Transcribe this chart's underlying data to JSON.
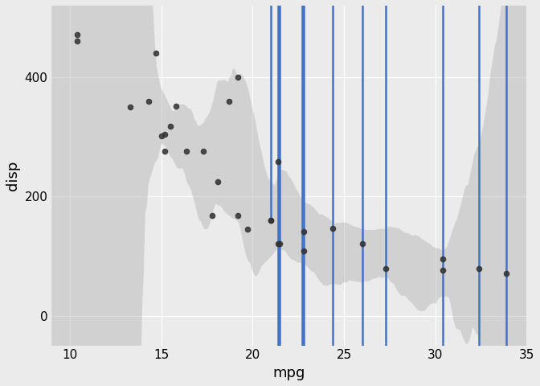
{
  "mpg": [
    21.0,
    21.0,
    22.8,
    21.4,
    18.7,
    18.1,
    14.3,
    24.4,
    22.8,
    19.2,
    17.8,
    16.4,
    17.3,
    15.2,
    10.4,
    10.4,
    14.7,
    32.4,
    30.4,
    33.9,
    21.5,
    15.5,
    15.2,
    13.3,
    19.2,
    27.3,
    26.0,
    30.4,
    15.8,
    19.7,
    15.0,
    21.4
  ],
  "disp": [
    160.0,
    160.0,
    108.0,
    258.0,
    360.0,
    225.0,
    360.0,
    146.7,
    140.8,
    167.6,
    167.6,
    275.8,
    275.8,
    275.8,
    472.0,
    460.0,
    440.0,
    78.7,
    75.7,
    71.1,
    120.1,
    318.0,
    304.0,
    350.0,
    400.0,
    79.0,
    120.3,
    95.1,
    351.0,
    145.0,
    301.0,
    121.0
  ],
  "point_color": "#333333",
  "point_size": 20,
  "point_alpha": 0.85,
  "line_color": "#4472C4",
  "line_width": 1.8,
  "ci_color": "#AAAAAA",
  "ci_alpha": 0.4,
  "bg_color": "#EBEBEB",
  "panel_bg": "#EBEBEB",
  "grid_color": "#FFFFFF",
  "title": "",
  "xlabel": "mpg",
  "ylabel": "disp",
  "xlim": [
    9,
    35
  ],
  "ylim": [
    -50,
    520
  ],
  "xticks": [
    10,
    15,
    20,
    25,
    30,
    35
  ],
  "yticks": [
    0,
    200,
    400
  ],
  "xlabel_fontsize": 13,
  "ylabel_fontsize": 13,
  "tick_fontsize": 11
}
